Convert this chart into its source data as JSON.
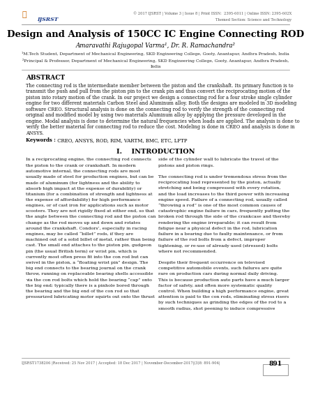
{
  "title": "Design and Analysis of 150CC IC Engine Connecting ROD",
  "authors": "Amaravathi Rajugopal Varma¹, Dr. R. Ramachandra²",
  "affil1": "¹M.Tech Student, Department of Mechanical Engineering, SKD Engineering College, Gooty, Anantapur, Andhra Pradesh, India",
  "affil2": "²Principal & Professor, Department of Mechanical Engineering, SKD Engineering College, Gooty, Anantapur, Andhra Pradesh,",
  "affil2b": "India",
  "header_journal": "© 2017 IJSRST | Volume 3 | Issue 8 | Print ISSN:  2395-6011 | Online ISSN: 2395-602X",
  "header_section": "Themed Section: Science and Technology",
  "abstract_label": "ABSTRACT",
  "keywords_label": "Keywords :",
  "keywords_text": " CREO, ANSYS, ROD, RIM, VARTM, BMC, ETC, LFTP",
  "intro_heading": "I.    INTRODUCTION",
  "footer_text": "IJSRST1738206 |Received: 25 Nov 2017 | Accepted: 18 Dec 2017 | November-December-2017|(3)8: 891-904|",
  "footer_page": "891",
  "logo_text": "IJSRST",
  "bg_color": "#ffffff",
  "abstract_body": "The connecting rod is the intermediate member between the piston and the crankshaft. Its primary function is to transmit the push and pull from the piston pin to the crank pin and thus convert the reciprocating motion of the piston into rotary motion of the crank. In our project we design a connecting rod for a four stroke single cylinder engine for two different materials Carbon Steel and Aluminum alloy. Both the designs are modeled in 3D modeling software CREO. Structural analysis is done on the connecting rod to verify the strength of the connecting rod original and modified model by using two materials Aluminum alloy by applying the pressure developed in the engine. Modal analysis is done to determine the natural frequencies when loads are applied. The analysis is done to verify the better material for connecting rod to reduce the cost. Modeling is done in CREO and analysis is done in ANSYS.",
  "col1_lines": [
    "In a reciprocating engine, the connecting rod connects",
    "the piston to the crank or crankshaft. In modern",
    "automotive internal, the connecting rods are most",
    "usually made of steel for production engines, but can be",
    "made of aluminum (for lightness and the ability to",
    "absorb high impact at the expense of durability) or",
    "titanium (for a combination of strength and lightness at",
    "the expense of affordability) for high performance",
    "engines, or of cast iron for applications such as motor",
    "scooters. They are not rigidly fixed at either end, so that",
    "the angle between the connecting rod and the piston can",
    "change as the rod moves up and down and rotates",
    "around the crankshaft. Condors’, especially in racing",
    "engines, may be called “billet” rods, if they are",
    "machined out of a solid billet of metal, rather than being",
    "cast. The small end attaches to the piston pin, gudgeon",
    "pin (the usual British term) or wrist pin, which is",
    "currently most often press fit into the con rod but can",
    "swivel in the piston, a “floating wrist pin” design. The",
    "big end connects to the bearing journal on the crank",
    "throw, running on replaceable bearing shells accessible",
    "via the con rod bolts which hold the bearing “cap” onto",
    "the big end; typically there is a pinhole bored through",
    "the bearing and the big end of the con rod so that",
    "pressurized lubricating motor squirts out onto the thrust"
  ],
  "col2_lines": [
    "side of the cylinder wall to lubricate the travel of the",
    "pistons and piston rings.",
    "",
    "The connecting rod is under tremendous stress from the",
    "reciprocating load represented by the piston, actually",
    "stretching and being compressed with every rotation,",
    "and the load increases to the third power with increasing",
    "engine speed. Failure of a connecting rod, usually called",
    "“throwing a rod” is one of the most common causes of",
    "catastrophic engine failure in cars, frequently putting the",
    "broken rod through the side of the crankcase and thereby",
    "rendering the engine irreparable; it can result from",
    "fatigue near a physical defect in the rod, lubrication",
    "failure in a bearing due to faulty maintenance, or from",
    "failure of the rod bolts from a defect, improper",
    "tightening, or re-use of already used (stressed) bolts",
    "where not recommended.",
    "",
    "Despite their frequent occurrence on televised",
    "competitive automobile events, such failures are quite",
    "rare on production cars during normal daily driving.",
    "This is because production auto parts have a much larger",
    "factor of safety, and often more systematic quality",
    "control. When building a high performance engine, great",
    "attention is paid to the con rods, eliminating stress risers",
    "by such techniques as grinding the edges of the rod to a",
    "smooth radius, shot peening to induce compressive"
  ],
  "abstract_lines": [
    "The connecting rod is the intermediate member between the piston and the crankshaft. Its primary function is to",
    "transmit the push and pull from the piston pin to the crank pin and thus convert the reciprocating motion of the",
    "piston into rotary motion of the crank. In our project we design a connecting rod for a four stroke single cylinder",
    "engine for two different materials Carbon Steel and Aluminum alloy. Both the designs are modeled in 3D modeling",
    "software CREO. Structural analysis is done on the connecting rod to verify the strength of the connecting rod",
    "original and modified model by using two materials Aluminum alloy by applying the pressure developed in the",
    "engine. Modal analysis is done to determine the natural frequencies when loads are applied. The analysis is done to",
    "verify the better material for connecting rod to reduce the cost. Modeling is done in CREO and analysis is done in",
    "ANSYS."
  ]
}
